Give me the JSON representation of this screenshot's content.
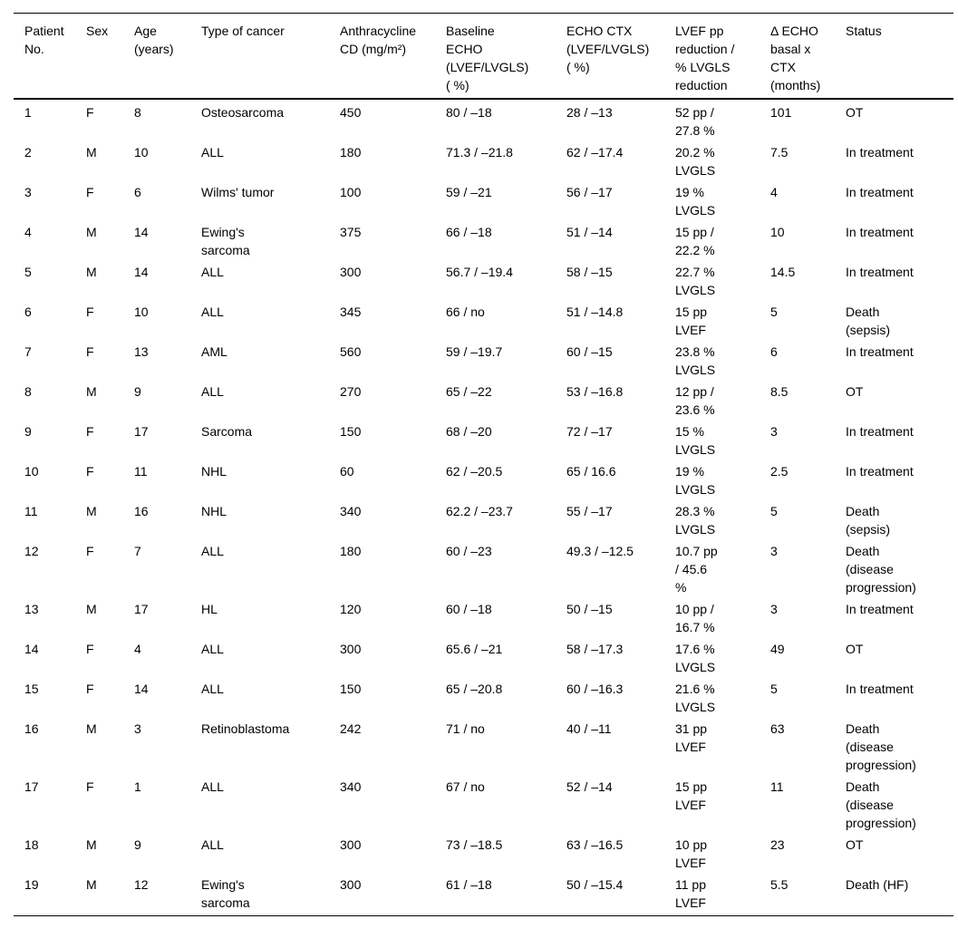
{
  "table": {
    "columns": [
      "Patient\nNo.",
      "Sex",
      "Age\n(years)",
      "Type of cancer",
      "Anthracycline\nCD (mg/m²)",
      "Baseline\nECHO\n(LVEF/LVGLS)\n( %)",
      "ECHO CTX\n(LVEF/LVGLS)\n( %)",
      "LVEF pp\nreduction /\n% LVGLS\nreduction",
      "Δ ECHO\nbasal x\nCTX\n(months)",
      "Status"
    ],
    "rows": [
      [
        "1",
        "F",
        "8",
        "Osteosarcoma",
        "450",
        "80 / –18",
        "28 / –13",
        "52 pp /\n27.8 %",
        "101",
        "OT"
      ],
      [
        "2",
        "M",
        "10",
        "ALL",
        "180",
        "71.3 / –21.8",
        "62 / –17.4",
        "20.2 %\nLVGLS",
        "7.5",
        "In treatment"
      ],
      [
        "3",
        "F",
        "6",
        "Wilms' tumor",
        "100",
        "59 / –21",
        "56 / –17",
        "19 %\nLVGLS",
        "4",
        "In treatment"
      ],
      [
        "4",
        "M",
        "14",
        "Ewing's\nsarcoma",
        "375",
        "66 / –18",
        "51 / –14",
        "15 pp /\n22.2 %",
        "10",
        "In treatment"
      ],
      [
        "5",
        "M",
        "14",
        "ALL",
        "300",
        "56.7 / –19.4",
        "58 / –15",
        "22.7 %\nLVGLS",
        "14.5",
        "In treatment"
      ],
      [
        "6",
        "F",
        "10",
        "ALL",
        "345",
        "66 / no",
        "51 / –14.8",
        "15 pp\nLVEF",
        "5",
        "Death\n(sepsis)"
      ],
      [
        "7",
        "F",
        "13",
        "AML",
        "560",
        "59 / –19.7",
        "60 / –15",
        "23.8 %\nLVGLS",
        "6",
        "In treatment"
      ],
      [
        "8",
        "M",
        "9",
        "ALL",
        "270",
        "65 / –22",
        "53 / –16.8",
        "12 pp /\n23.6 %",
        "8.5",
        "OT"
      ],
      [
        "9",
        "F",
        "17",
        "Sarcoma",
        "150",
        "68 / –20",
        "72 / –17",
        "15 %\nLVGLS",
        "3",
        "In treatment"
      ],
      [
        "10",
        "F",
        "11",
        "NHL",
        "60",
        "62 / –20.5",
        "65 / 16.6",
        "19 %\nLVGLS",
        "2.5",
        "In treatment"
      ],
      [
        "11",
        "M",
        "16",
        "NHL",
        "340",
        "62.2 / –23.7",
        "55 / –17",
        "28.3 %\nLVGLS",
        "5",
        "Death\n(sepsis)"
      ],
      [
        "12",
        "F",
        "7",
        "ALL",
        "180",
        "60 / –23",
        "49.3 / –12.5",
        "10.7 pp\n/ 45.6\n%",
        "3",
        "Death\n(disease\nprogression)"
      ],
      [
        "13",
        "M",
        "17",
        "HL",
        "120",
        "60 / –18",
        "50 / –15",
        "10 pp /\n16.7 %",
        "3",
        "In treatment"
      ],
      [
        "14",
        "F",
        "4",
        "ALL",
        "300",
        "65.6 / –21",
        "58 / –17.3",
        "17.6 %\nLVGLS",
        "49",
        "OT"
      ],
      [
        "15",
        "F",
        "14",
        "ALL",
        "150",
        "65 / –20.8",
        "60 / –16.3",
        "21.6 %\nLVGLS",
        "5",
        "In treatment"
      ],
      [
        "16",
        "M",
        "3",
        "Retinoblastoma",
        "242",
        "71 / no",
        "40 / –11",
        "31 pp\nLVEF",
        "63",
        "Death\n(disease\nprogression)"
      ],
      [
        "17",
        "F",
        "1",
        "ALL",
        "340",
        "67 / no",
        "52 / –14",
        "15 pp\nLVEF",
        "11",
        "Death\n(disease\nprogression)"
      ],
      [
        "18",
        "M",
        "9",
        "ALL",
        "300",
        "73 / –18.5",
        "63 / –16.5",
        "10 pp\nLVEF",
        "23",
        "OT"
      ],
      [
        "19",
        "M",
        "12",
        "Ewing's\nsarcoma",
        "300",
        "61 / –18",
        "50 / –15.4",
        "11 pp\nLVEF",
        "5.5",
        "Death (HF)"
      ]
    ]
  }
}
